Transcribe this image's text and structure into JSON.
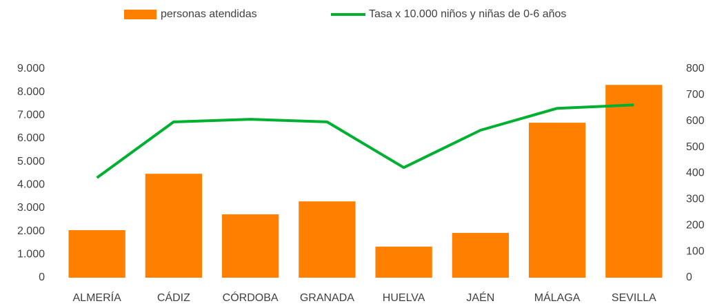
{
  "chart_data": {
    "type": "bar",
    "categories": [
      "ALMERÍA",
      "CÁDIZ",
      "CÓRDOBA",
      "GRANADA",
      "HUELVA",
      "JAÉN",
      "MÁLAGA",
      "SEVILLA"
    ],
    "series": [
      {
        "name": "personas atendidas",
        "color": "#ff8000",
        "type": "bar",
        "values": [
          2050,
          4480,
          2730,
          3290,
          1340,
          1930,
          6680,
          8310
        ]
      },
      {
        "name": "Tasa x 10.000 niños y niñas de 0-6 años",
        "color": "#00b030",
        "type": "line",
        "axis": "y2",
        "values": [
          383,
          597,
          607,
          597,
          422,
          565,
          649,
          662
        ]
      }
    ],
    "ylim": [
      0,
      9000
    ],
    "yticks": [
      0,
      {
        "value": 1000,
        "label": "1.000"
      },
      {
        "value": 2000,
        "label": "2.000"
      },
      {
        "value": 3000,
        "label": "3.000"
      },
      {
        "value": 4000,
        "label": "4.000"
      },
      {
        "value": 5000,
        "label": "5.000"
      },
      {
        "value": 6000,
        "label": "6.000"
      },
      {
        "value": 7000,
        "label": "7.000"
      },
      {
        "value": 8000,
        "label": "8.000"
      },
      {
        "value": 9000,
        "label": "9.000"
      }
    ],
    "y2lim": [
      0,
      800
    ],
    "y2ticks": [
      0,
      100,
      200,
      300,
      400,
      500,
      600,
      700,
      800
    ],
    "grid": false,
    "legend": "top"
  }
}
